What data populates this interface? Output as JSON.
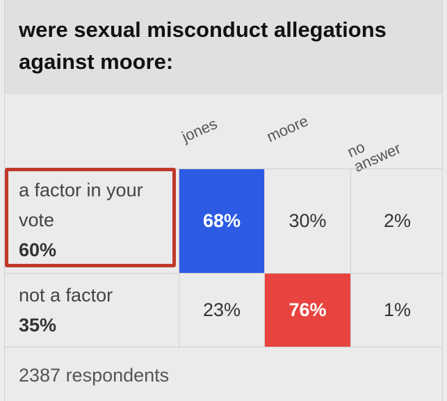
{
  "title": "were sexual misconduct allegations against moore:",
  "footer": "2387 respondents",
  "colors": {
    "jones": "#2d5be3",
    "moore": "#e8443f",
    "highlight_border": "#c0392b"
  },
  "chart_data": {
    "type": "table",
    "title": "were sexual misconduct allegations against moore:",
    "columns": [
      "jones",
      "moore",
      "no answer"
    ],
    "rows": [
      {
        "label": "a factor in your vote",
        "share": "60%",
        "values": [
          "68%",
          "30%",
          "2%"
        ],
        "winner_index": 0,
        "highlighted": true
      },
      {
        "label": "not a factor",
        "share": "35%",
        "values": [
          "23%",
          "76%",
          "1%"
        ],
        "winner_index": 1,
        "highlighted": false
      }
    ],
    "respondents": "2387 respondents"
  }
}
